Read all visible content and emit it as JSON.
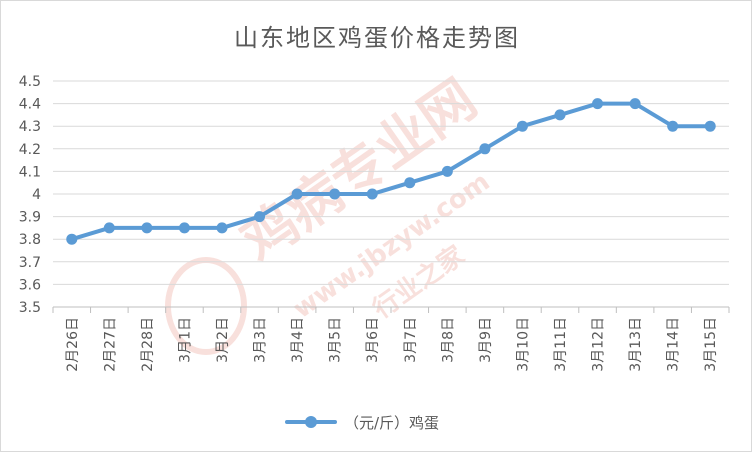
{
  "chart_data": {
    "type": "line",
    "title": "山东地区鸡蛋价格走势图",
    "categories": [
      "2月26日",
      "2月27日",
      "2月28日",
      "3月1日",
      "3月2日",
      "3月3日",
      "3月4日",
      "3月5日",
      "3月6日",
      "3月7日",
      "3月8日",
      "3月9日",
      "3月10日",
      "3月11日",
      "3月12日",
      "3月13日",
      "3月14日",
      "3月15日"
    ],
    "series": [
      {
        "name": "（元/斤）鸡蛋",
        "values": [
          3.8,
          3.85,
          3.85,
          3.85,
          3.85,
          3.9,
          4.0,
          4.0,
          4.0,
          4.05,
          4.1,
          4.2,
          4.3,
          4.35,
          4.4,
          4.4,
          4.3,
          4.3
        ]
      }
    ],
    "ylim": [
      3.5,
      4.5
    ],
    "yticks": [
      "3.5",
      "3.6",
      "3.7",
      "3.8",
      "3.9",
      "4",
      "4.1",
      "4.2",
      "4.3",
      "4.4",
      "4.5"
    ],
    "grid": true,
    "legend_position": "bottom",
    "xlabel": "",
    "ylabel": ""
  },
  "colors": {
    "series": "#5b9bd5",
    "grid": "#d9d9d9",
    "text": "#595959"
  },
  "watermark": {
    "main": "鸡病专业网",
    "url": "www.jbzyw.com",
    "slogan": "行业之家"
  }
}
